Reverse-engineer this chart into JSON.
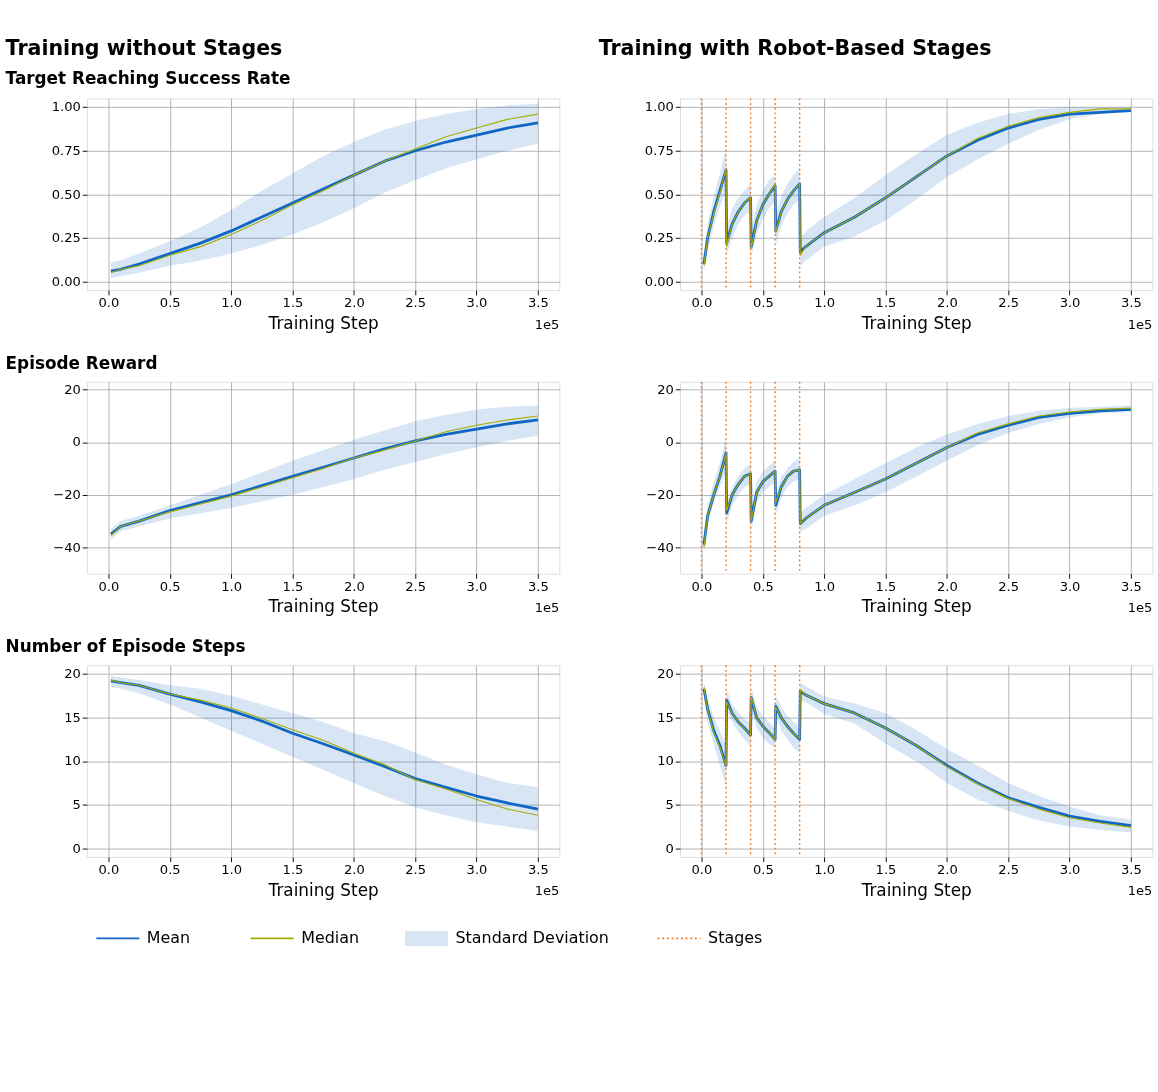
{
  "chart_data": [
    {
      "type": "line",
      "title": "Training without Stages",
      "subtitle": "Target Reaching Success Rate",
      "xlabel": "Training Step",
      "annotations": [
        "1e5"
      ],
      "grid": true,
      "xlim": [
        -0.175,
        3.675
      ],
      "xticks": [
        {
          "value": 0,
          "label": "0.0"
        },
        0.5,
        {
          "value": 1,
          "label": "1.0"
        },
        1.5,
        {
          "value": 2,
          "label": "2.0"
        },
        2.5,
        {
          "value": 3,
          "label": "3.0"
        },
        3.5
      ],
      "ylim": [
        -0.05,
        1.05
      ],
      "yticks": [
        {
          "value": 0,
          "label": "0.00"
        },
        0.25,
        {
          "value": 0.5,
          "label": "0.50"
        },
        0.75,
        {
          "value": 1,
          "label": "1.00"
        }
      ],
      "x": [
        0.02,
        0.1,
        0.25,
        0.5,
        0.75,
        1.0,
        1.25,
        1.5,
        1.75,
        2.0,
        2.25,
        2.5,
        2.75,
        3.0,
        3.25,
        3.5
      ],
      "series": [
        {
          "type": "line",
          "color": "#0f66c4",
          "values": [
            0.06,
            0.07,
            0.1,
            0.16,
            0.22,
            0.29,
            0.37,
            0.45,
            0.53,
            0.61,
            0.69,
            0.75,
            0.8,
            0.84,
            0.88,
            0.91
          ],
          "lower": [
            0.02,
            0.03,
            0.05,
            0.09,
            0.12,
            0.16,
            0.21,
            0.27,
            0.34,
            0.42,
            0.51,
            0.58,
            0.65,
            0.7,
            0.75,
            0.79
          ],
          "upper": [
            0.11,
            0.12,
            0.16,
            0.23,
            0.31,
            0.41,
            0.52,
            0.62,
            0.72,
            0.8,
            0.87,
            0.92,
            0.96,
            0.99,
            1.01,
            1.02
          ]
        },
        {
          "type": "line",
          "color": "#a3ad00",
          "values": [
            0.05,
            0.07,
            0.09,
            0.15,
            0.2,
            0.27,
            0.35,
            0.44,
            0.52,
            0.61,
            0.69,
            0.76,
            0.83,
            0.88,
            0.93,
            0.96
          ]
        }
      ]
    },
    {
      "type": "line",
      "title": "Training with Robot-Based Stages",
      "xlabel": "Training Step",
      "annotations": [
        "1e5"
      ],
      "grid": true,
      "xlim": [
        -0.175,
        3.675
      ],
      "xticks": [
        {
          "value": 0,
          "label": "0.0"
        },
        0.5,
        {
          "value": 1,
          "label": "1.0"
        },
        1.5,
        {
          "value": 2,
          "label": "2.0"
        },
        2.5,
        {
          "value": 3,
          "label": "3.0"
        },
        3.5
      ],
      "ylim": [
        -0.05,
        1.05
      ],
      "yticks": [
        {
          "value": 0,
          "label": "0.00"
        },
        0.25,
        {
          "value": 0.5,
          "label": "0.50"
        },
        0.75,
        {
          "value": 1,
          "label": "1.00"
        }
      ],
      "x": [
        0.02,
        0.05,
        0.1,
        0.15,
        0.2,
        0.205,
        0.25,
        0.3,
        0.35,
        0.4,
        0.405,
        0.45,
        0.5,
        0.55,
        0.6,
        0.605,
        0.65,
        0.7,
        0.75,
        0.8,
        0.805,
        0.85,
        1.0,
        1.25,
        1.5,
        1.75,
        2.0,
        2.25,
        2.5,
        2.75,
        3.0,
        3.25,
        3.5
      ],
      "ref_lines": [
        {
          "axis": "x",
          "value": 0,
          "color": "#f07a22",
          "line_style": "dotted"
        },
        {
          "axis": "x",
          "value": 0.2,
          "color": "#f07a22",
          "line_style": "dotted"
        },
        {
          "axis": "x",
          "value": 0.4,
          "color": "#f07a22",
          "line_style": "dotted"
        },
        {
          "axis": "x",
          "value": 0.6,
          "color": "#f07a22",
          "line_style": "dotted"
        },
        {
          "axis": "x",
          "value": 0.8,
          "color": "#f07a22",
          "line_style": "dotted"
        }
      ],
      "series": [
        {
          "type": "line",
          "color": "#0f66c4",
          "values": [
            0.1,
            0.25,
            0.4,
            0.52,
            0.64,
            0.22,
            0.33,
            0.4,
            0.45,
            0.48,
            0.2,
            0.35,
            0.44,
            0.5,
            0.55,
            0.29,
            0.4,
            0.47,
            0.52,
            0.56,
            0.17,
            0.2,
            0.28,
            0.37,
            0.48,
            0.6,
            0.72,
            0.81,
            0.88,
            0.93,
            0.96,
            0.97,
            0.98
          ],
          "lower": [
            0.06,
            0.18,
            0.32,
            0.43,
            0.52,
            0.15,
            0.25,
            0.33,
            0.38,
            0.4,
            0.14,
            0.27,
            0.36,
            0.42,
            0.46,
            0.21,
            0.32,
            0.39,
            0.44,
            0.47,
            0.09,
            0.12,
            0.2,
            0.26,
            0.35,
            0.47,
            0.6,
            0.7,
            0.79,
            0.87,
            0.93,
            0.96,
            0.98
          ],
          "upper": [
            0.15,
            0.33,
            0.49,
            0.62,
            0.77,
            0.3,
            0.42,
            0.48,
            0.52,
            0.56,
            0.28,
            0.44,
            0.52,
            0.58,
            0.61,
            0.38,
            0.49,
            0.56,
            0.61,
            0.65,
            0.25,
            0.29,
            0.37,
            0.48,
            0.61,
            0.73,
            0.84,
            0.91,
            0.96,
            0.99,
            1.0,
            1.0,
            1.0
          ]
        },
        {
          "type": "line",
          "color": "#a3ad00",
          "values": [
            0.09,
            0.25,
            0.39,
            0.51,
            0.65,
            0.2,
            0.33,
            0.4,
            0.45,
            0.48,
            0.19,
            0.35,
            0.44,
            0.5,
            0.56,
            0.28,
            0.4,
            0.47,
            0.52,
            0.56,
            0.15,
            0.2,
            0.28,
            0.37,
            0.48,
            0.6,
            0.72,
            0.82,
            0.89,
            0.94,
            0.97,
            0.99,
            0.99
          ]
        }
      ]
    },
    {
      "type": "line",
      "title": "Episode Reward",
      "xlabel": "Training Step",
      "annotations": [
        "1e5"
      ],
      "grid": true,
      "xlim": [
        -0.175,
        3.675
      ],
      "xticks": [
        {
          "value": 0,
          "label": "0.0"
        },
        0.5,
        {
          "value": 1,
          "label": "1.0"
        },
        1.5,
        {
          "value": 2,
          "label": "2.0"
        },
        2.5,
        {
          "value": 3,
          "label": "3.0"
        },
        3.5
      ],
      "ylim": [
        -50,
        23
      ],
      "yticks": [
        {
          "value": -40,
          "label": "−40"
        },
        {
          "value": -20,
          "label": "−20"
        },
        0,
        20
      ],
      "x": [
        0.02,
        0.1,
        0.25,
        0.5,
        0.75,
        1.0,
        1.25,
        1.5,
        1.75,
        2.0,
        2.25,
        2.5,
        2.75,
        3.0,
        3.25,
        3.5
      ],
      "series": [
        {
          "type": "line",
          "color": "#0f66c4",
          "values": [
            -35,
            -32,
            -30,
            -26,
            -23,
            -20,
            -16.5,
            -13,
            -9.5,
            -6,
            -2.5,
            0.5,
            3,
            5,
            7,
            8.5
          ],
          "lower": [
            -37,
            -34,
            -32,
            -29,
            -27,
            -25,
            -22.5,
            -20,
            -17,
            -14,
            -10.5,
            -7.5,
            -4.5,
            -2,
            0.5,
            2.5
          ],
          "upper": [
            -33,
            -30,
            -28,
            -24,
            -20,
            -16,
            -11.5,
            -7,
            -3,
            1,
            4.5,
            8,
            10.5,
            12.5,
            13.5,
            14
          ]
        },
        {
          "type": "line",
          "color": "#a3ad00",
          "values": [
            -35.5,
            -32,
            -30,
            -26.5,
            -23.5,
            -20.5,
            -17,
            -13.5,
            -10,
            -6,
            -3,
            0.5,
            4,
            6.5,
            8.5,
            10
          ]
        }
      ]
    },
    {
      "type": "line",
      "xlabel": "Training Step",
      "annotations": [
        "1e5"
      ],
      "grid": true,
      "xlim": [
        -0.175,
        3.675
      ],
      "xticks": [
        {
          "value": 0,
          "label": "0.0"
        },
        0.5,
        {
          "value": 1,
          "label": "1.0"
        },
        1.5,
        {
          "value": 2,
          "label": "2.0"
        },
        2.5,
        {
          "value": 3,
          "label": "3.0"
        },
        3.5
      ],
      "ylim": [
        -50,
        23
      ],
      "yticks": [
        {
          "value": -40,
          "label": "−40"
        },
        {
          "value": -20,
          "label": "−20"
        },
        0,
        20
      ],
      "x": [
        0.02,
        0.05,
        0.1,
        0.15,
        0.2,
        0.205,
        0.25,
        0.3,
        0.35,
        0.4,
        0.405,
        0.45,
        0.5,
        0.55,
        0.6,
        0.605,
        0.65,
        0.7,
        0.75,
        0.8,
        0.805,
        0.85,
        1.0,
        1.25,
        1.5,
        1.75,
        2.0,
        2.25,
        2.5,
        2.75,
        3.0,
        3.25,
        3.5
      ],
      "ref_lines": [
        {
          "axis": "x",
          "value": 0,
          "color": "#f07a22",
          "line_style": "dotted"
        },
        {
          "axis": "x",
          "value": 0.2,
          "color": "#f07a22",
          "line_style": "dotted"
        },
        {
          "axis": "x",
          "value": 0.4,
          "color": "#f07a22",
          "line_style": "dotted"
        },
        {
          "axis": "x",
          "value": 0.6,
          "color": "#f07a22",
          "line_style": "dotted"
        },
        {
          "axis": "x",
          "value": 0.8,
          "color": "#f07a22",
          "line_style": "dotted"
        }
      ],
      "series": [
        {
          "type": "line",
          "color": "#0f66c4",
          "values": [
            -39,
            -28,
            -20,
            -13,
            -4,
            -27,
            -20,
            -16,
            -13,
            -12,
            -30,
            -19,
            -15,
            -13,
            -11,
            -24,
            -17,
            -13,
            -11,
            -10.5,
            -31,
            -29,
            -24,
            -19,
            -14,
            -8,
            -2,
            3,
            6.5,
            9.5,
            11,
            12,
            12.5
          ],
          "lower": [
            -42,
            -31,
            -23,
            -17,
            -10,
            -31,
            -24,
            -20,
            -17,
            -16,
            -34,
            -23,
            -19,
            -17,
            -15,
            -28,
            -21,
            -17,
            -15,
            -14,
            -34,
            -33,
            -28,
            -24,
            -19,
            -13,
            -7,
            -1,
            3.5,
            7,
            9.5,
            11,
            11.5
          ],
          "upper": [
            -36,
            -24,
            -15,
            -8,
            2,
            -23,
            -17,
            -13,
            -10,
            -8,
            -26,
            -15,
            -11,
            -9,
            -7,
            -20,
            -13,
            -10,
            -7.5,
            -6,
            -27,
            -25,
            -20,
            -14,
            -8,
            -2,
            3,
            7,
            10,
            12,
            13,
            13.5,
            14
          ]
        },
        {
          "type": "line",
          "color": "#a3ad00",
          "values": [
            -40,
            -28,
            -20,
            -13,
            -4.5,
            -26,
            -20,
            -16,
            -13,
            -12,
            -30,
            -19,
            -15,
            -13,
            -11,
            -23,
            -17,
            -13,
            -11,
            -10.5,
            -31,
            -29,
            -24,
            -19,
            -14,
            -8,
            -2,
            3.5,
            7,
            10,
            11.5,
            12.5,
            13
          ]
        }
      ]
    },
    {
      "type": "line",
      "title": "Number of Episode Steps",
      "xlabel": "Training Step",
      "annotations": [
        "1e5",
        "Standard Deviation"
      ],
      "grid": true,
      "legend": "bottom",
      "xlim": [
        -0.175,
        3.675
      ],
      "xticks": [
        {
          "value": 0,
          "label": "0.0"
        },
        0.5,
        {
          "value": 1,
          "label": "1.0"
        },
        1.5,
        {
          "value": 2,
          "label": "2.0"
        },
        2.5,
        {
          "value": 3,
          "label": "3.0"
        },
        3.5
      ],
      "ylim": [
        -1,
        21
      ],
      "yticks": [
        0,
        5,
        10,
        15,
        20
      ],
      "x": [
        0.02,
        0.1,
        0.25,
        0.5,
        0.75,
        1.0,
        1.25,
        1.5,
        1.75,
        2.0,
        2.25,
        2.5,
        2.75,
        3.0,
        3.25,
        3.5
      ],
      "series": [
        {
          "type": "line",
          "name": "Mean",
          "color": "#0f66c4",
          "values": [
            19.2,
            19,
            18.7,
            17.7,
            16.8,
            15.8,
            14.6,
            13.2,
            12,
            10.7,
            9.4,
            8,
            7,
            6,
            5.2,
            4.5
          ],
          "lower": [
            18.5,
            18.3,
            17.8,
            16.5,
            15,
            13.5,
            12,
            10.5,
            9,
            7.5,
            6,
            4.7,
            3.8,
            3.0,
            2.5,
            2.0
          ],
          "upper": [
            19.8,
            19.6,
            19.3,
            18.7,
            18.3,
            17.5,
            16.5,
            15.5,
            14.5,
            13.2,
            12.3,
            11,
            9.6,
            8.5,
            7.5,
            7.0
          ]
        },
        {
          "type": "line",
          "name": "Median",
          "color": "#a3ad00",
          "values": [
            19.3,
            19,
            18.7,
            17.7,
            17,
            16.1,
            14.9,
            13.6,
            12.4,
            10.9,
            9.6,
            7.9,
            6.8,
            5.6,
            4.5,
            3.8
          ]
        }
      ]
    },
    {
      "type": "line",
      "xlabel": "Training Step",
      "annotations": [
        "1e5"
      ],
      "grid": true,
      "legend": "bottom",
      "xlim": [
        -0.175,
        3.675
      ],
      "xticks": [
        {
          "value": 0,
          "label": "0.0"
        },
        0.5,
        {
          "value": 1,
          "label": "1.0"
        },
        1.5,
        {
          "value": 2,
          "label": "2.0"
        },
        2.5,
        {
          "value": 3,
          "label": "3.0"
        },
        3.5
      ],
      "ylim": [
        -1,
        21
      ],
      "yticks": [
        0,
        5,
        10,
        15,
        20
      ],
      "x": [
        0.02,
        0.05,
        0.1,
        0.15,
        0.2,
        0.205,
        0.25,
        0.3,
        0.35,
        0.4,
        0.405,
        0.45,
        0.5,
        0.55,
        0.6,
        0.605,
        0.65,
        0.7,
        0.75,
        0.8,
        0.805,
        0.85,
        1.0,
        1.25,
        1.5,
        1.75,
        2.0,
        2.25,
        2.5,
        2.75,
        3.0,
        3.25,
        3.5
      ],
      "ref_lines": [
        {
          "axis": "x",
          "value": 0,
          "label": "Stages",
          "color": "#f07a22",
          "line_style": "dotted"
        },
        {
          "axis": "x",
          "value": 0.2,
          "color": "#f07a22",
          "line_style": "dotted"
        },
        {
          "axis": "x",
          "value": 0.4,
          "color": "#f07a22",
          "line_style": "dotted"
        },
        {
          "axis": "x",
          "value": 0.6,
          "color": "#f07a22",
          "line_style": "dotted"
        },
        {
          "axis": "x",
          "value": 0.8,
          "color": "#f07a22",
          "line_style": "dotted"
        }
      ],
      "series": [
        {
          "type": "line",
          "color": "#0f66c4",
          "values": [
            18.3,
            16,
            13.5,
            11.8,
            9.5,
            17,
            15.5,
            14.5,
            13.8,
            13,
            17.3,
            15,
            14,
            13.3,
            12.5,
            16.3,
            15,
            14,
            13.2,
            12.5,
            18,
            17.6,
            16.6,
            15.5,
            13.8,
            11.8,
            9.5,
            7.5,
            5.8,
            4.7,
            3.7,
            3.1,
            2.6
          ],
          "lower": [
            17.5,
            14.5,
            12,
            9.5,
            7.2,
            15.8,
            14.5,
            13.3,
            12.5,
            11.7,
            16,
            13.8,
            12.7,
            12,
            11.5,
            15.5,
            13.5,
            12.5,
            11.5,
            11,
            17,
            16.8,
            15.4,
            14.3,
            12,
            10,
            7.5,
            5.6,
            4.3,
            3.2,
            2.5,
            2.1,
            1.8
          ],
          "upper": [
            19,
            17.2,
            15,
            13.5,
            11.7,
            18.3,
            16.5,
            15.6,
            14.8,
            14.4,
            18.5,
            16.2,
            15.2,
            14.5,
            13.7,
            17.5,
            16.2,
            15.2,
            14.5,
            14,
            19,
            18.6,
            17.4,
            16.6,
            15.5,
            13.6,
            11.4,
            9.5,
            7.5,
            6,
            4.8,
            3.8,
            3.3
          ]
        },
        {
          "type": "line",
          "color": "#a3ad00",
          "values": [
            18.5,
            16,
            13.3,
            11.6,
            9.4,
            16.8,
            15.5,
            14.5,
            13.8,
            13,
            17.4,
            15,
            14,
            13.3,
            12.5,
            16.2,
            15,
            14,
            13.2,
            12.6,
            18.2,
            17.6,
            16.6,
            15.5,
            13.8,
            11.8,
            9.4,
            7.4,
            5.7,
            4.5,
            3.5,
            2.9,
            2.4
          ]
        }
      ]
    }
  ]
}
